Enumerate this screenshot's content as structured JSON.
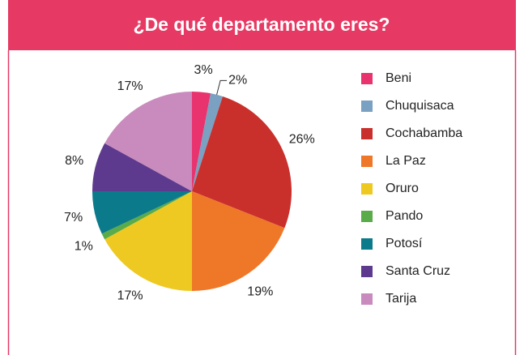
{
  "chart_data": {
    "type": "pie",
    "title": "¿De qué departamento eres?",
    "categories": [
      "Beni",
      "Chuquisaca",
      "Cochabamba",
      "La Paz",
      "Oruro",
      "Pando",
      "Potosí",
      "Santa Cruz",
      "Tarija"
    ],
    "values": [
      3,
      2,
      26,
      19,
      17,
      1,
      7,
      8,
      17
    ],
    "value_labels": [
      "3%",
      "2%",
      "26%",
      "19%",
      "17%",
      "1%",
      "7%",
      "8%",
      "17%"
    ],
    "colors": [
      "#e8336e",
      "#7aa0c2",
      "#c9302c",
      "#ef7728",
      "#eec921",
      "#5aab49",
      "#0b7b8b",
      "#5e3a8e",
      "#c98bbd"
    ],
    "legend": "right"
  }
}
